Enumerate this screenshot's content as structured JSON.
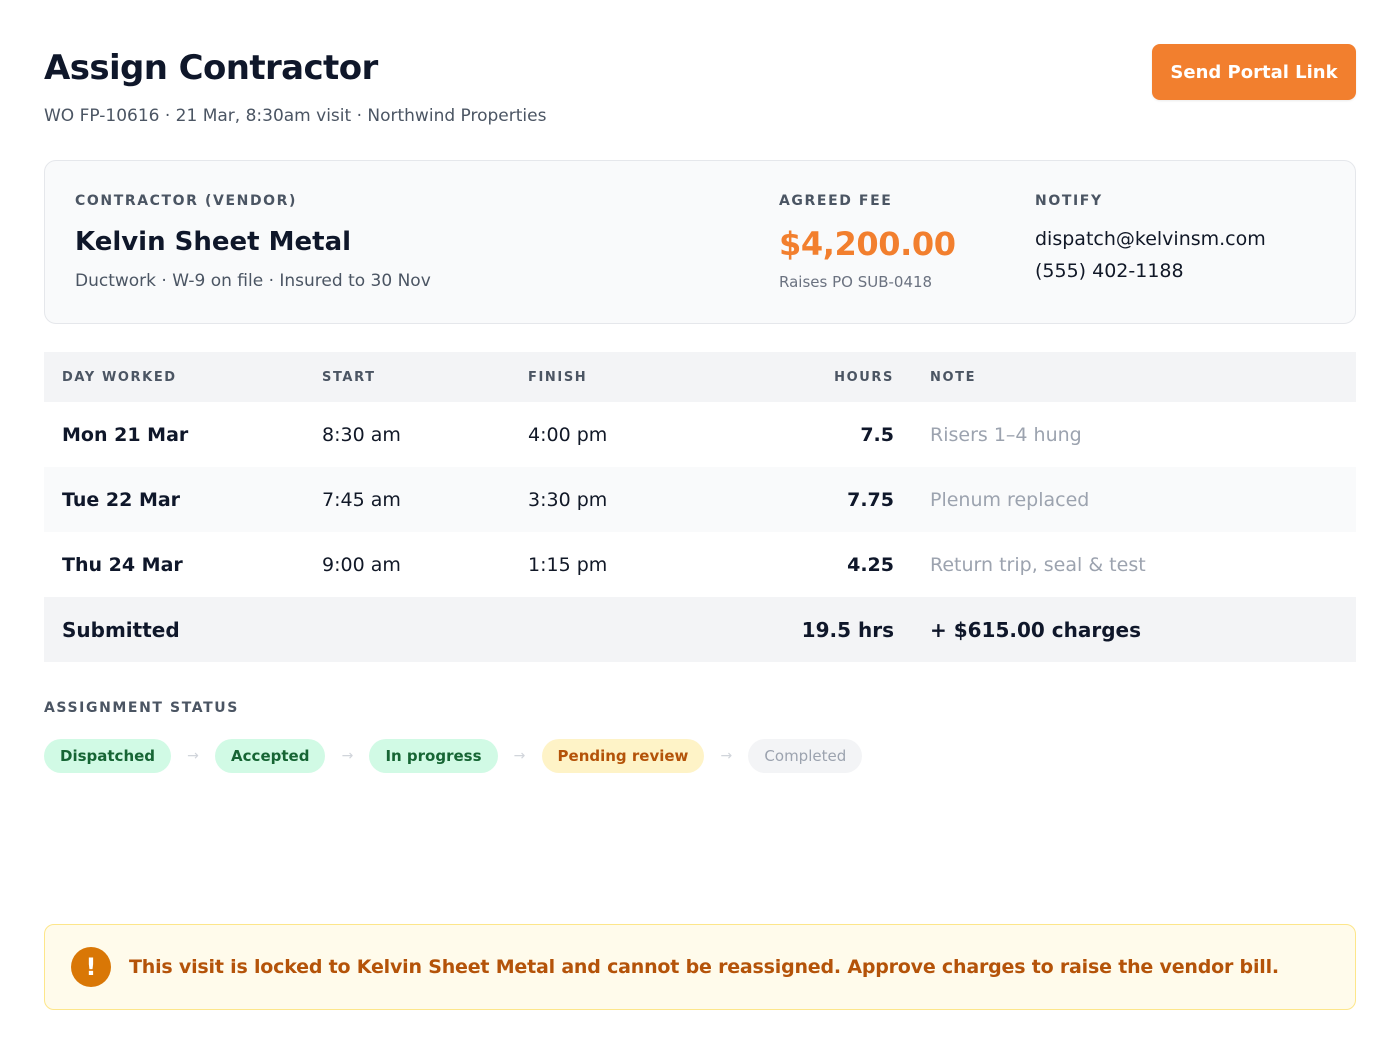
{
  "header": {
    "title": "Assign Contractor",
    "subtitle": "WO FP-10616 · 21 Mar, 8:30am visit · Northwind Properties",
    "send_button": "Send Portal Link"
  },
  "vendor": {
    "contractor_label": "CONTRACTOR (VENDOR)",
    "name": "Kelvin Sheet Metal",
    "meta": "Ductwork · W-9 on file · Insured to 30 Nov",
    "fee_label": "AGREED FEE",
    "fee": "$4,200.00",
    "po": "Raises PO SUB-0418",
    "notify_label": "NOTIFY",
    "email": "dispatch@kelvinsm.com",
    "phone": "(555) 402-1188"
  },
  "table": {
    "headers": {
      "day": "DAY WORKED",
      "start": "START",
      "finish": "FINISH",
      "hours": "HOURS",
      "note": "NOTE"
    },
    "rows": [
      {
        "day": "Mon 21 Mar",
        "start": "8:30 am",
        "finish": "4:00 pm",
        "hours": "7.5",
        "note": "Risers 1–4 hung"
      },
      {
        "day": "Tue 22 Mar",
        "start": "7:45 am",
        "finish": "3:30 pm",
        "hours": "7.75",
        "note": "Plenum replaced"
      },
      {
        "day": "Thu 24 Mar",
        "start": "9:00 am",
        "finish": "1:15 pm",
        "hours": "4.25",
        "note": "Return trip, seal & test"
      }
    ],
    "total": {
      "label": "Submitted",
      "hours": "19.5 hrs",
      "charges": "+ $615.00 charges"
    }
  },
  "status": {
    "label": "ASSIGNMENT STATUS",
    "steps": [
      "Dispatched",
      "Accepted",
      "In progress",
      "Pending review",
      "Completed"
    ],
    "arrow": "→",
    "current_step": "Pending review"
  },
  "alert": {
    "icon": "!",
    "message": "This visit is locked to Kelvin Sheet Metal and cannot be reassigned. Approve charges to raise the vendor bill."
  },
  "colors": {
    "accent": "#f27f2e",
    "done_bg": "#d1fae5",
    "pending_bg": "#fef3c7",
    "warning": "#d97706"
  }
}
